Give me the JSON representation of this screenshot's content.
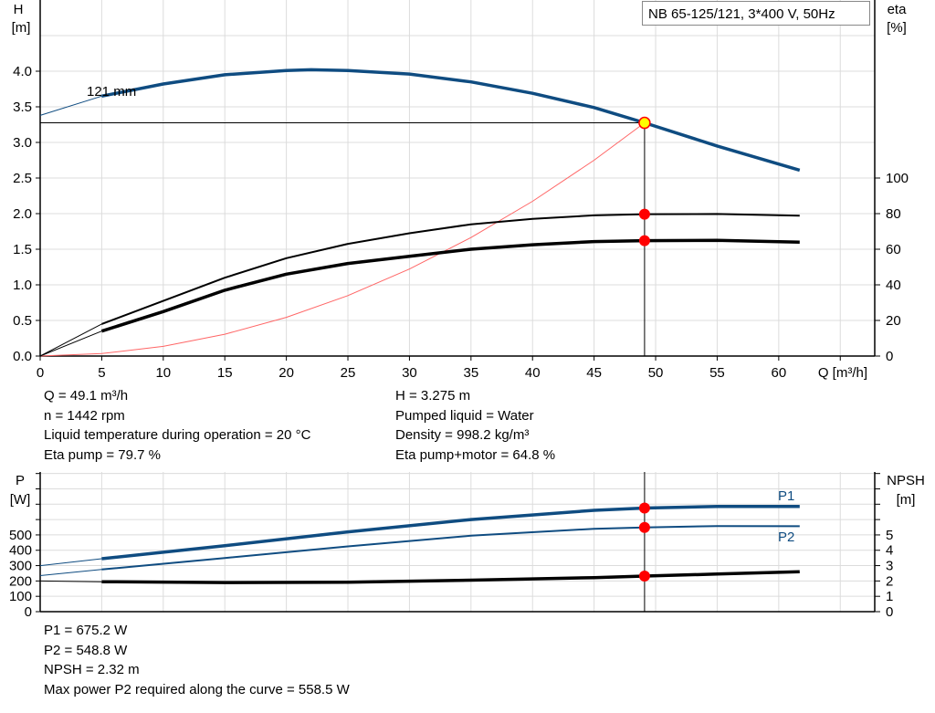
{
  "title": "NB 65-125/121, 3*400 V, 50Hz",
  "impeller_label": "121 mm",
  "colors": {
    "head": "#0f4c81",
    "power": "#0f4c81",
    "eta": "#000000",
    "npsh": "#000000",
    "system_curve": "#ff6666",
    "marker": "#ff0000",
    "duty_point": "#ffff00",
    "grid": "#dcdcdc"
  },
  "chart_data": [
    {
      "type": "line",
      "xlabel": "Q [m³/h]",
      "ylabel": "H [m]",
      "y2label": "eta [%]",
      "xlim": [
        0,
        67.8
      ],
      "ylim": [
        0,
        5
      ],
      "y2lim": [
        0,
        200
      ],
      "grid": true,
      "x_ticks": [
        "0",
        "5",
        "10",
        "15",
        "20",
        "25",
        "30",
        "35",
        "40",
        "45",
        "50",
        "55",
        "60"
      ],
      "y_ticks": [
        "0.0",
        "0.5",
        "1.0",
        "1.5",
        "2.0",
        "2.5",
        "3.0",
        "3.5",
        "4.0"
      ],
      "y2_ticks": [
        "0",
        "20",
        "40",
        "60",
        "80",
        "100"
      ],
      "series": [
        {
          "name": "121 mm",
          "axis": "H",
          "x": [
            0,
            5,
            10,
            15,
            20,
            22,
            25,
            30,
            35,
            40,
            45,
            49.1,
            55,
            61.7
          ],
          "y": [
            3.38,
            3.65,
            3.82,
            3.95,
            4.01,
            4.02,
            4.01,
            3.96,
            3.85,
            3.69,
            3.49,
            3.275,
            2.95,
            2.61
          ]
        },
        {
          "axis": "eta",
          "x": [
            0,
            5,
            10,
            15,
            20,
            25,
            30,
            35,
            40,
            45,
            49.1,
            55,
            61.7
          ],
          "y": [
            0,
            18,
            31,
            44,
            55,
            63,
            69,
            74,
            77,
            79,
            79.7,
            79.8,
            78.8
          ]
        },
        {
          "axis": "eta",
          "x": [
            0,
            5,
            10,
            15,
            20,
            25,
            30,
            35,
            40,
            45,
            49.1,
            55,
            61.7
          ],
          "y": [
            0,
            14,
            25,
            37,
            46,
            52,
            56,
            60,
            62.5,
            64.3,
            64.8,
            65,
            64
          ]
        },
        {
          "axis": "H",
          "x": [
            0,
            5,
            10,
            15,
            20,
            25,
            30,
            35,
            40,
            45,
            49.1
          ],
          "y": [
            0,
            0.034,
            0.136,
            0.306,
            0.543,
            0.849,
            1.222,
            1.664,
            2.173,
            2.75,
            3.275
          ]
        }
      ],
      "duty_point": {
        "Q": 49.1,
        "H": 3.275,
        "eta_pump": 79.7,
        "eta_pump_motor": 64.8
      }
    },
    {
      "type": "line",
      "xlim": [
        0,
        67.8
      ],
      "ylabel": "P [W]",
      "y2label": "NPSH [m]",
      "ylim": [
        0,
        910
      ],
      "y2lim": [
        0,
        9.1
      ],
      "grid": true,
      "y_ticks": [
        "0",
        "100",
        "200",
        "300",
        "400",
        "500"
      ],
      "y2_ticks": [
        "0",
        "1",
        "2",
        "3",
        "4",
        "5"
      ],
      "series": [
        {
          "name": "P1",
          "axis": "P",
          "x": [
            0,
            5,
            15,
            25,
            35,
            45,
            49.1,
            55,
            61.7
          ],
          "y": [
            300,
            345,
            430,
            520,
            600,
            660,
            675.2,
            685,
            685
          ]
        },
        {
          "name": "P2",
          "axis": "P",
          "x": [
            0,
            5,
            15,
            25,
            35,
            45,
            49.1,
            55,
            61.7
          ],
          "y": [
            235,
            275,
            350,
            425,
            495,
            540,
            548.8,
            558,
            557
          ]
        },
        {
          "axis": "NPSH",
          "x": [
            0,
            5,
            15,
            25,
            35,
            45,
            49.1,
            55,
            61.7
          ],
          "y": [
            2.0,
            1.95,
            1.9,
            1.92,
            2.05,
            2.22,
            2.32,
            2.45,
            2.6
          ]
        }
      ]
    }
  ],
  "results_top": {
    "left": [
      "Q = 49.1 m³/h",
      "n = 1442 rpm",
      "Liquid temperature during operation = 20 °C",
      "Eta pump = 79.7 %"
    ],
    "right": [
      "H = 3.275 m",
      "Pumped liquid = Water",
      "Density = 998.2 kg/m³",
      "Eta pump+motor = 64.8 %"
    ]
  },
  "results_bottom": [
    "P1 = 675.2 W",
    "P2 = 548.8 W",
    "NPSH = 2.32 m",
    "Max power P2 required along the curve = 558.5 W"
  ]
}
